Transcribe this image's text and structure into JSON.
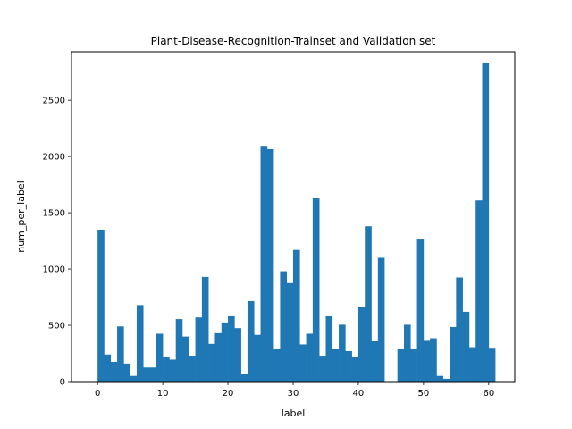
{
  "chart_data": {
    "type": "bar",
    "title": "Plant-Disease-Recognition-Trainset and Validation set",
    "xlabel": "label",
    "ylabel": "num_per_label",
    "xlim": [
      -4,
      64
    ],
    "ylim": [
      0,
      2930
    ],
    "xticks": [
      0,
      10,
      20,
      30,
      40,
      50,
      60
    ],
    "yticks": [
      0,
      500,
      1000,
      1500,
      2000,
      2500
    ],
    "bin_width": 1,
    "bin_start": 0,
    "bar_color": "#1f77b4",
    "values": [
      1350,
      240,
      175,
      490,
      160,
      50,
      680,
      125,
      125,
      425,
      215,
      195,
      555,
      400,
      230,
      570,
      930,
      335,
      430,
      525,
      580,
      475,
      70,
      715,
      415,
      2095,
      2065,
      290,
      980,
      875,
      1170,
      330,
      425,
      1630,
      230,
      580,
      290,
      505,
      270,
      215,
      665,
      1380,
      360,
      1100,
      0,
      0,
      290,
      505,
      290,
      1270,
      370,
      385,
      50,
      25,
      485,
      925,
      620,
      305,
      1610,
      2830,
      300
    ]
  }
}
